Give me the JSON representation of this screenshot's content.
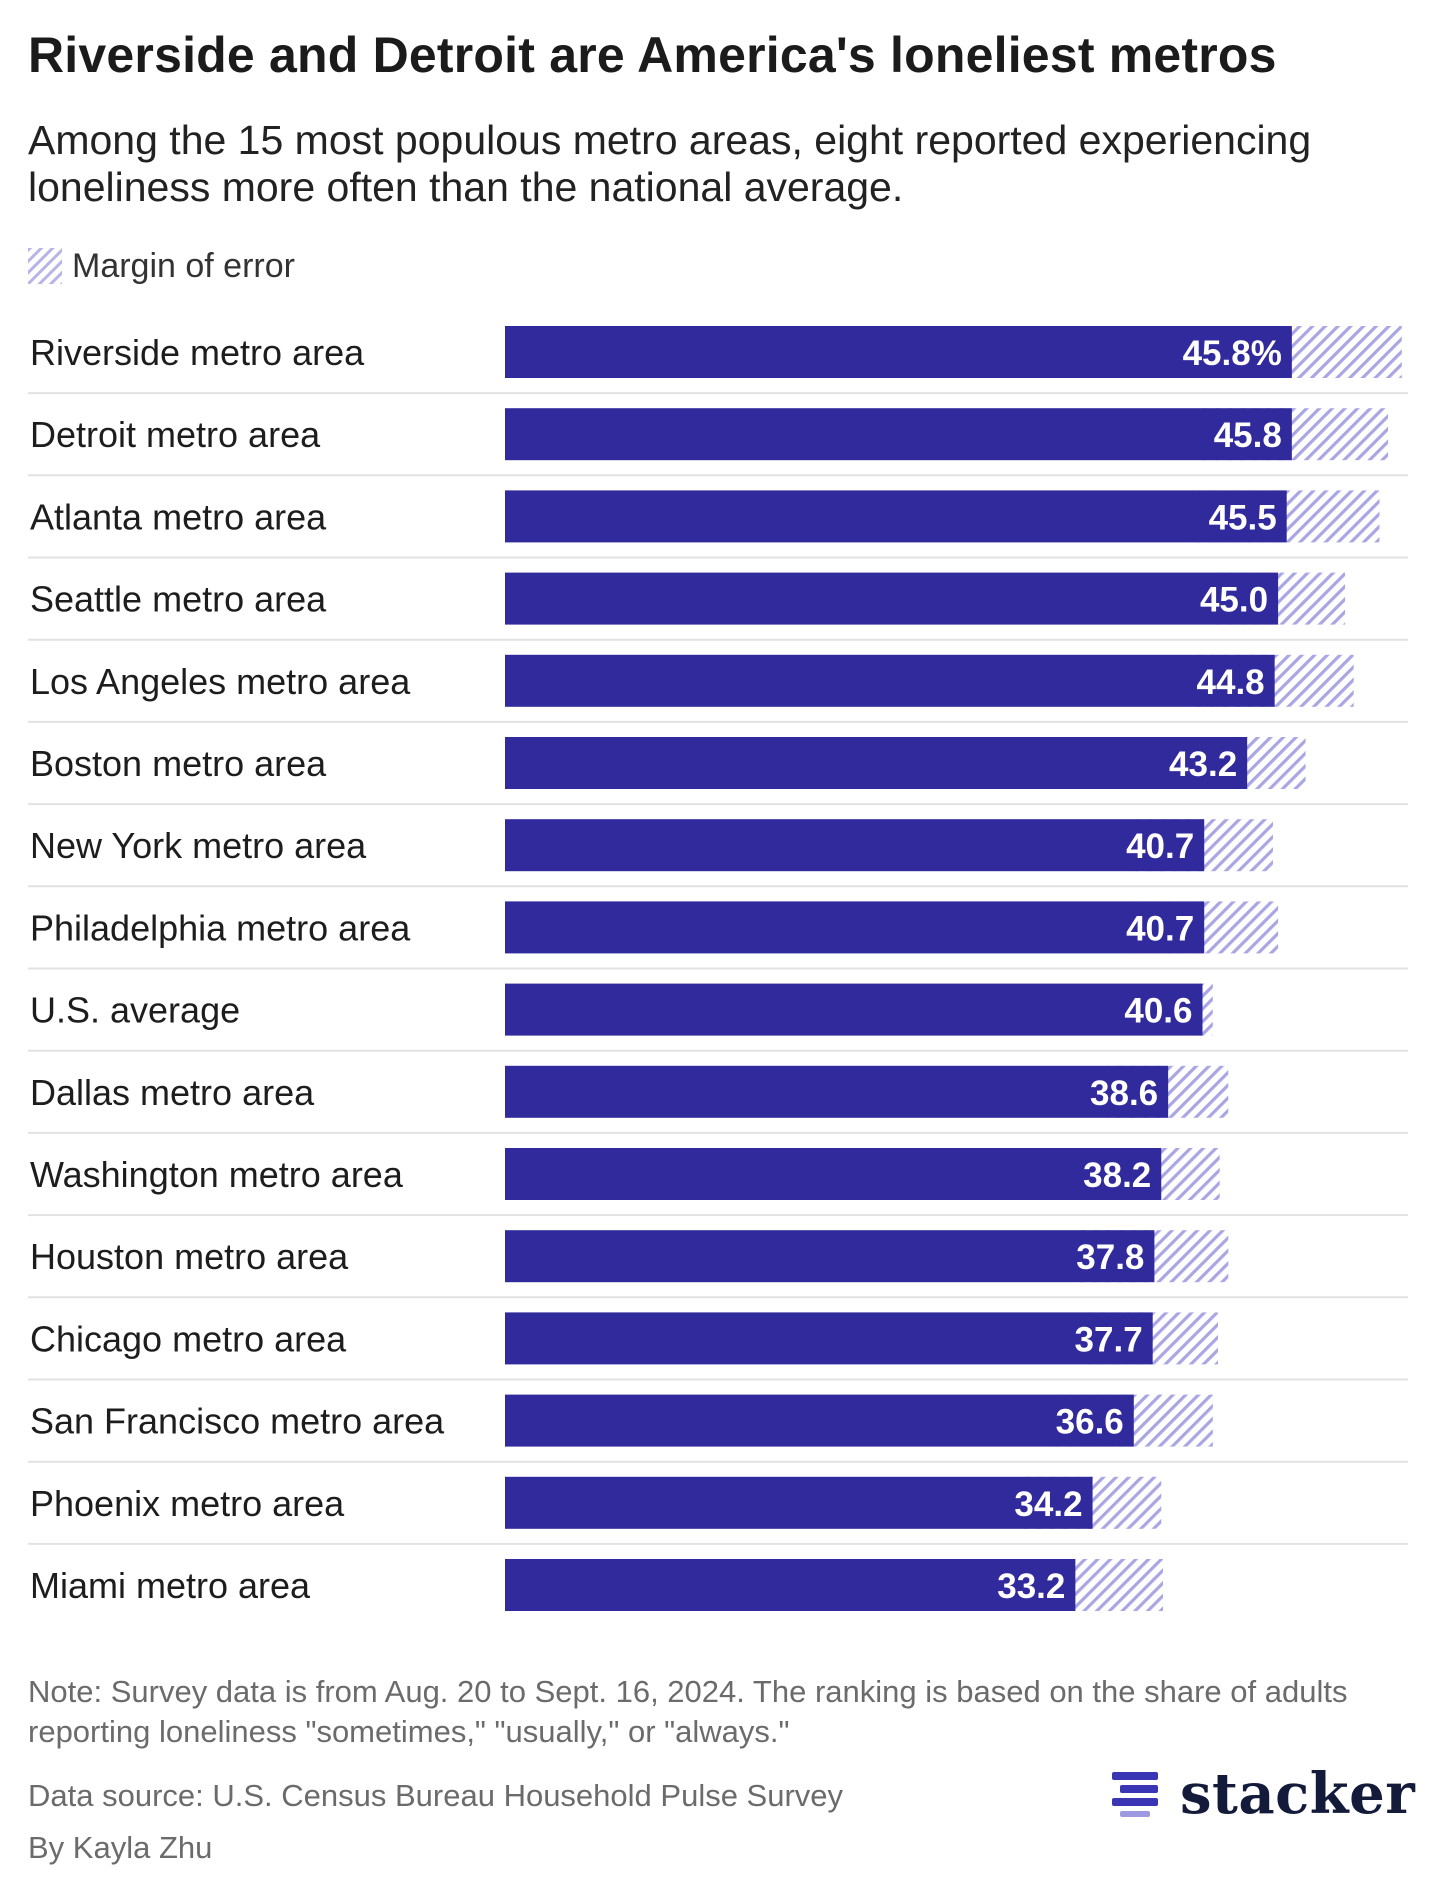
{
  "title": "Riverside and Detroit are America's loneliest metros",
  "subtitle": "Among the 15 most populous metro areas, eight reported experiencing loneliness more often than the national average.",
  "legend": {
    "margin_label": "Margin of error"
  },
  "colors": {
    "bar": "#302a9c",
    "margin_hatch": "#a9a6e3",
    "grid_line": "#e2e2e2",
    "value_text": "#ffffff",
    "brand": "#141a3a"
  },
  "chart_data": {
    "type": "bar",
    "orientation": "horizontal",
    "value_suffix_first": "%",
    "categories": [
      "Riverside metro area",
      "Detroit metro area",
      "Atlanta metro area",
      "Seattle metro area",
      "Los Angeles metro area",
      "Boston metro area",
      "New York metro area",
      "Philadelphia metro area",
      "U.S. average",
      "Dallas metro area",
      "Washington metro area",
      "Houston metro area",
      "Chicago metro area",
      "San Francisco metro area",
      "Phoenix metro area",
      "Miami metro area"
    ],
    "values": [
      45.8,
      45.8,
      45.5,
      45.0,
      44.8,
      43.2,
      40.7,
      40.7,
      40.6,
      38.6,
      38.2,
      37.8,
      37.7,
      36.6,
      34.2,
      33.2
    ],
    "labels": [
      "45.8%",
      "45.8",
      "45.5",
      "45.0",
      "44.8",
      "43.2",
      "40.7",
      "40.7",
      "40.6",
      "38.6",
      "38.2",
      "37.8",
      "37.7",
      "36.6",
      "34.2",
      "33.2"
    ],
    "margin_of_error": [
      6.4,
      5.6,
      5.4,
      3.9,
      4.6,
      3.4,
      4.0,
      4.3,
      0.6,
      3.5,
      3.4,
      4.3,
      3.8,
      4.6,
      4.0,
      5.1
    ],
    "xlim": [
      0,
      52
    ]
  },
  "footer": {
    "note": "Note: Survey data is from Aug. 20 to Sept. 16, 2024. The ranking is based on the share of adults reporting loneliness \"sometimes,\" \"usually,\" or \"always.\"",
    "source": "Data source: U.S. Census Bureau Household Pulse Survey",
    "byline": "By Kayla Zhu",
    "brand": "stacker"
  }
}
